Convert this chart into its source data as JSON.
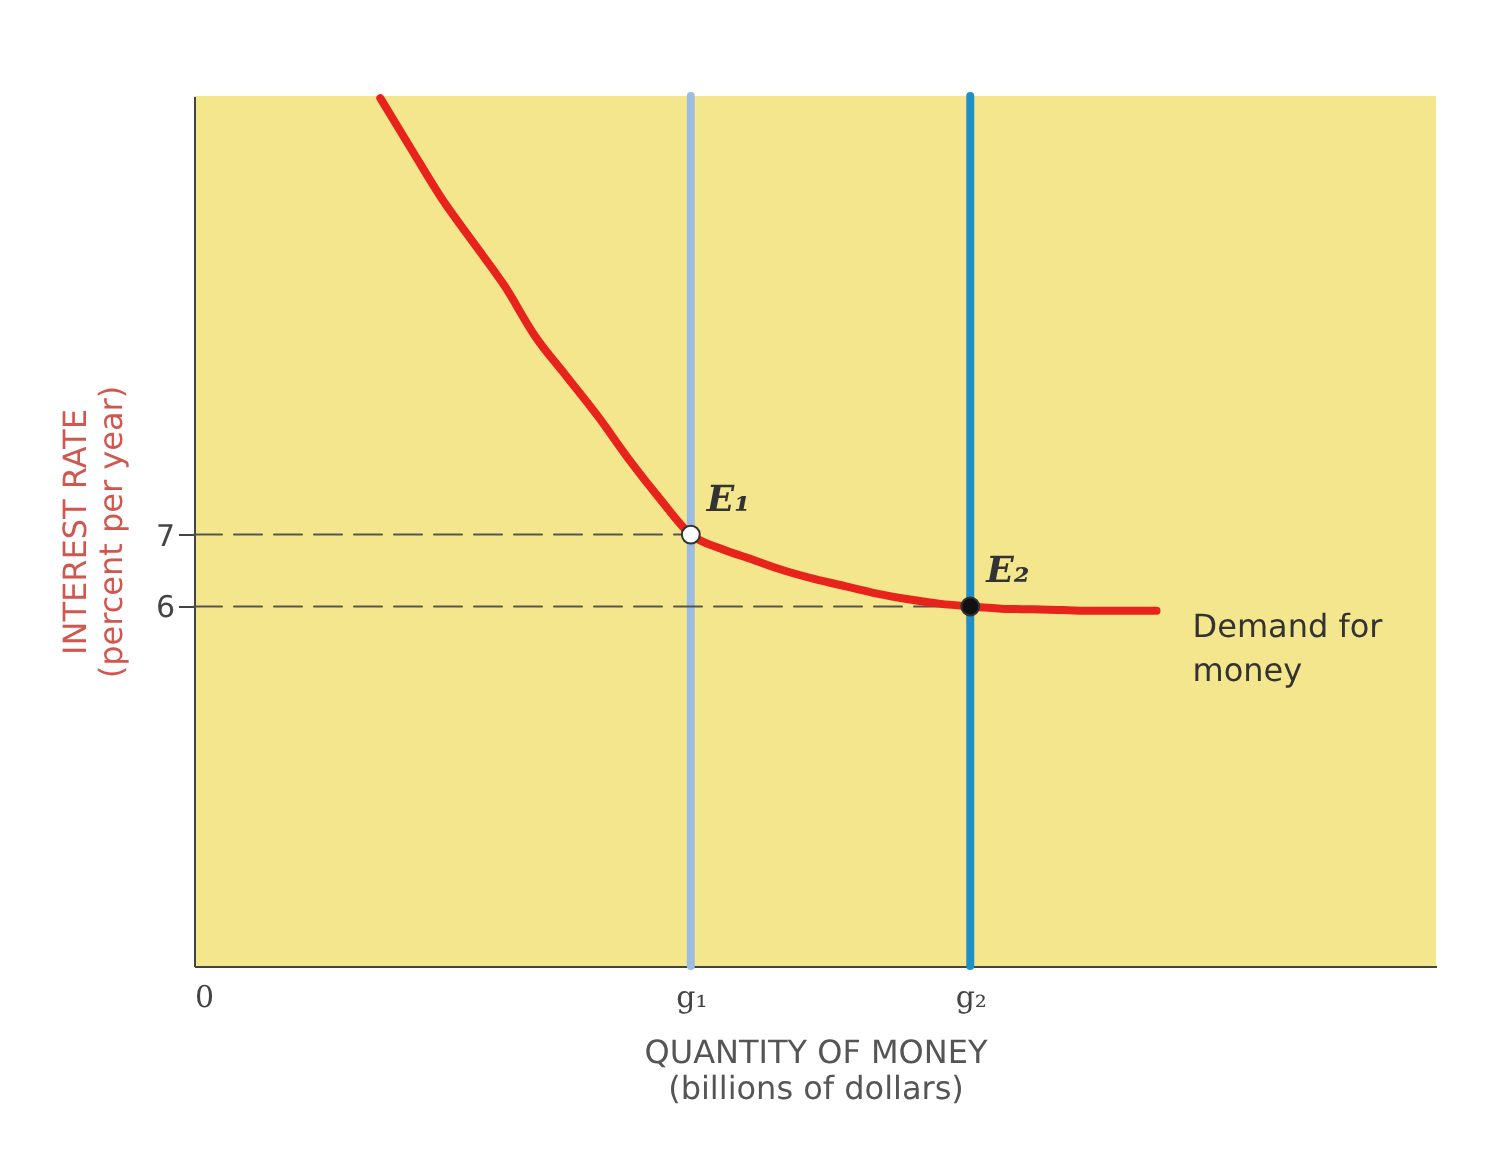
{
  "chart_data": {
    "type": "line",
    "xlabel": "QUANTITY OF MONEY\n(billions of dollars)",
    "ylabel": "INTEREST RATE\n(percent per year)",
    "categories": [
      "0",
      null,
      null,
      null,
      null,
      null,
      null,
      null,
      null,
      null,
      null,
      null,
      null,
      null,
      null,
      null,
      "g₁",
      null,
      null,
      null,
      null,
      null,
      null,
      null,
      null,
      "g₂",
      null,
      null,
      null,
      null,
      null,
      null,
      null,
      null,
      null,
      null,
      null,
      null,
      null,
      null,
      null
    ],
    "ylim": [
      1,
      13.1
    ],
    "yticks": [
      6,
      7
    ],
    "ref_lines": [
      {
        "axis": "x",
        "value": "g₁",
        "color": "#9cbde0"
      },
      {
        "axis": "x",
        "value": "g₂",
        "color": "#1f8fc8"
      }
    ],
    "series": [
      {
        "line_style": "dashed",
        "color": "#555555",
        "values": [
          7,
          7,
          7,
          7,
          7,
          7,
          7,
          7,
          7,
          7,
          7,
          7,
          7,
          7,
          7,
          7,
          7,
          null,
          null,
          null,
          null,
          null,
          null,
          null,
          null,
          null,
          null,
          null,
          null,
          null,
          null,
          null,
          null,
          null,
          null,
          null,
          null,
          null,
          null,
          null,
          null
        ]
      },
      {
        "line_style": "dashed",
        "color": "#555555",
        "values": [
          6,
          6,
          6,
          6,
          6,
          6,
          6,
          6,
          6,
          6,
          6,
          6,
          6,
          6,
          6,
          6,
          6,
          6,
          6,
          6,
          6,
          6,
          6,
          6,
          6,
          6,
          null,
          null,
          null,
          null,
          null,
          null,
          null,
          null,
          null,
          null,
          null,
          null,
          null,
          null,
          null
        ]
      },
      {
        "name": "Demand for money",
        "color": "#e8231c",
        "values": [
          null,
          null,
          null,
          null,
          null,
          null,
          13.07,
          12.36,
          11.66,
          11.06,
          10.46,
          9.75,
          9.2,
          8.65,
          8.05,
          7.5,
          7.0,
          6.8,
          6.65,
          6.5,
          6.38,
          6.28,
          6.18,
          6.1,
          6.04,
          6.0,
          5.97,
          5.96,
          5.95,
          5.94,
          5.94,
          5.94,
          null,
          null,
          null,
          null,
          null,
          null,
          null,
          null,
          null
        ]
      },
      {
        "type": "scatter",
        "marker": "circle",
        "color": "#ffffff",
        "x": [
          "g₁"
        ],
        "values": [
          7
        ]
      },
      {
        "type": "scatter",
        "marker": "circle",
        "color": "#111111",
        "x": [
          "g₂"
        ],
        "values": [
          6
        ]
      }
    ],
    "annotations": [
      {
        "text": "E₁",
        "x": "g₁",
        "y": 7
      },
      {
        "text": "E₂",
        "x": "g₂",
        "y": 6
      }
    ]
  }
}
